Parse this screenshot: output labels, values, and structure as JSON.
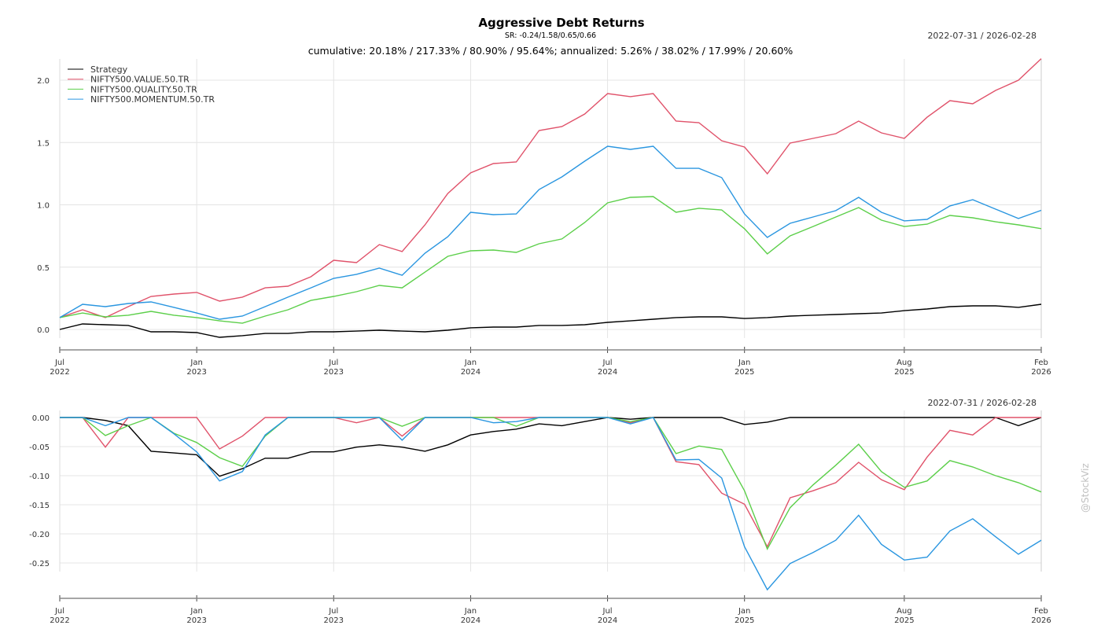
{
  "title": "Aggressive Debt Returns",
  "sr_text": "SR: -0.24/1.58/0.65/0.66",
  "subtitle": "cumulative: 20.18% / 217.33% / 80.90% / 95.64%; annualized: 5.26% / 38.02% / 17.99% / 20.60%",
  "watermark": "@StockViz",
  "chart_data": [
    {
      "type": "line",
      "name": "cumulative-returns",
      "date_range": "2022-07-31 / 2026-02-28",
      "x": "monthly Jul 2022 .. Feb 2026 (44 points)",
      "x_ticks": [
        {
          "i": 0,
          "l1": "Jul",
          "l2": "2022"
        },
        {
          "i": 6,
          "l1": "Jan",
          "l2": "2023"
        },
        {
          "i": 12,
          "l1": "Jul",
          "l2": "2023"
        },
        {
          "i": 18,
          "l1": "Jan",
          "l2": "2024"
        },
        {
          "i": 24,
          "l1": "Jul",
          "l2": "2024"
        },
        {
          "i": 30,
          "l1": "Jan",
          "l2": "2025"
        },
        {
          "i": 37,
          "l1": "Aug",
          "l2": "2025"
        },
        {
          "i": 43,
          "l1": "Feb",
          "l2": "2026"
        }
      ],
      "y_ticks": [
        "0.0",
        "0.5",
        "1.0",
        "1.5",
        "2.0"
      ],
      "y_tick_values": [
        0,
        0.5,
        1.0,
        1.5,
        2.0
      ],
      "ylim": [
        -0.065,
        2.17
      ],
      "legend": "top-left",
      "grid": true,
      "series": [
        {
          "name": "Strategy",
          "color": "#000000",
          "values": [
            0,
            0.044,
            0.038,
            0.032,
            -0.019,
            -0.019,
            -0.025,
            -0.063,
            -0.05,
            -0.032,
            -0.032,
            -0.019,
            -0.019,
            -0.013,
            -0.006,
            -0.013,
            -0.019,
            -0.006,
            0.013,
            0.019,
            0.019,
            0.032,
            0.032,
            0.038,
            0.057,
            0.069,
            0.082,
            0.095,
            0.101,
            0.101,
            0.088,
            0.095,
            0.107,
            0.114,
            0.12,
            0.126,
            0.132,
            0.151,
            0.164,
            0.183,
            0.189,
            0.189,
            0.177,
            0.202
          ]
        },
        {
          "name": "NIFTY500.VALUE.50.TR",
          "color": "#e0526a",
          "values": [
            0.095,
            0.158,
            0.095,
            0.183,
            0.265,
            0.284,
            0.297,
            0.227,
            0.259,
            0.334,
            0.347,
            0.423,
            0.555,
            0.536,
            0.681,
            0.625,
            0.839,
            1.091,
            1.256,
            1.331,
            1.344,
            1.596,
            1.628,
            1.729,
            1.893,
            1.868,
            1.893,
            1.672,
            1.659,
            1.514,
            1.464,
            1.249,
            1.495,
            1.533,
            1.571,
            1.672,
            1.577,
            1.533,
            1.703,
            1.836,
            1.811,
            1.918,
            2.0,
            2.173
          ]
        },
        {
          "name": "NIFTY500.QUALITY.50.TR",
          "color": "#5ccf4a",
          "values": [
            0.095,
            0.132,
            0.101,
            0.114,
            0.145,
            0.114,
            0.095,
            0.069,
            0.05,
            0.107,
            0.158,
            0.233,
            0.265,
            0.303,
            0.353,
            0.334,
            0.46,
            0.587,
            0.631,
            0.637,
            0.618,
            0.688,
            0.726,
            0.858,
            1.016,
            1.06,
            1.066,
            0.94,
            0.972,
            0.959,
            0.808,
            0.606,
            0.751,
            0.826,
            0.902,
            0.978,
            0.877,
            0.826,
            0.845,
            0.915,
            0.896,
            0.864,
            0.839,
            0.809
          ]
        },
        {
          "name": "NIFTY500.MOMENTUM.50.TR",
          "color": "#2a96e0",
          "values": [
            0.095,
            0.202,
            0.183,
            0.208,
            0.221,
            0.177,
            0.132,
            0.082,
            0.107,
            0.183,
            0.259,
            0.334,
            0.41,
            0.442,
            0.492,
            0.435,
            0.612,
            0.744,
            0.94,
            0.921,
            0.927,
            1.123,
            1.224,
            1.35,
            1.47,
            1.445,
            1.47,
            1.293,
            1.293,
            1.218,
            0.927,
            0.738,
            0.852,
            0.902,
            0.953,
            1.06,
            0.94,
            0.871,
            0.883,
            0.991,
            1.041,
            0.965,
            0.89,
            0.956
          ]
        }
      ]
    },
    {
      "type": "line",
      "name": "drawdowns",
      "date_range": "2022-07-31 / 2026-02-28",
      "y_ticks": [
        "0.00",
        "-0.05",
        "-0.10",
        "-0.15",
        "-0.20",
        "-0.25"
      ],
      "y_tick_values": [
        0,
        -0.05,
        -0.1,
        -0.15,
        -0.2,
        -0.25
      ],
      "ylim": [
        -0.265,
        0.0
      ],
      "grid": true,
      "series": [
        {
          "name": "Strategy",
          "color": "#000000",
          "values": [
            0,
            0,
            -0.005,
            -0.014,
            -0.058,
            -0.061,
            -0.064,
            -0.101,
            -0.088,
            -0.07,
            -0.07,
            -0.059,
            -0.059,
            -0.051,
            -0.047,
            -0.051,
            -0.058,
            -0.047,
            -0.03,
            -0.024,
            -0.02,
            -0.011,
            -0.014,
            -0.007,
            0,
            -0.003,
            0,
            0,
            0,
            0,
            -0.012,
            -0.008,
            0,
            0,
            0,
            0,
            0,
            0,
            0,
            0,
            0,
            0,
            -0.014,
            0
          ]
        },
        {
          "name": "NIFTY500.VALUE.50.TR",
          "color": "#e0526a",
          "values": [
            0,
            0,
            -0.051,
            0,
            0,
            0,
            0,
            -0.054,
            -0.032,
            0,
            0,
            0,
            0,
            -0.009,
            0,
            -0.032,
            0,
            0,
            0,
            0,
            0,
            0,
            0,
            0,
            0,
            -0.009,
            0,
            -0.076,
            -0.081,
            -0.13,
            -0.149,
            -0.222,
            -0.138,
            -0.126,
            -0.112,
            -0.077,
            -0.107,
            -0.124,
            -0.068,
            -0.022,
            -0.03,
            0,
            0,
            0
          ]
        },
        {
          "name": "NIFTY500.QUALITY.50.TR",
          "color": "#5ccf4a",
          "values": [
            0,
            0,
            -0.031,
            -0.014,
            0,
            -0.027,
            -0.043,
            -0.069,
            -0.084,
            -0.032,
            0,
            0,
            0,
            0,
            0,
            -0.015,
            0,
            0,
            0,
            0,
            -0.015,
            0,
            0,
            0,
            0,
            -0.007,
            0,
            -0.062,
            -0.049,
            -0.055,
            -0.126,
            -0.226,
            -0.155,
            -0.116,
            -0.082,
            -0.046,
            -0.093,
            -0.12,
            -0.109,
            -0.074,
            -0.085,
            -0.1,
            -0.112,
            -0.128
          ]
        },
        {
          "name": "NIFTY500.MOMENTUM.50.TR",
          "color": "#2a96e0",
          "values": [
            0,
            0,
            -0.014,
            0,
            0,
            -0.028,
            -0.059,
            -0.109,
            -0.093,
            -0.03,
            0,
            0,
            0,
            0,
            0,
            -0.039,
            0,
            0,
            0,
            -0.009,
            -0.007,
            0,
            0,
            0,
            0,
            -0.011,
            0,
            -0.073,
            -0.072,
            -0.104,
            -0.222,
            -0.296,
            -0.251,
            -0.232,
            -0.211,
            -0.168,
            -0.218,
            -0.245,
            -0.24,
            -0.195,
            -0.174,
            -0.205,
            -0.235,
            -0.211
          ]
        }
      ]
    }
  ]
}
